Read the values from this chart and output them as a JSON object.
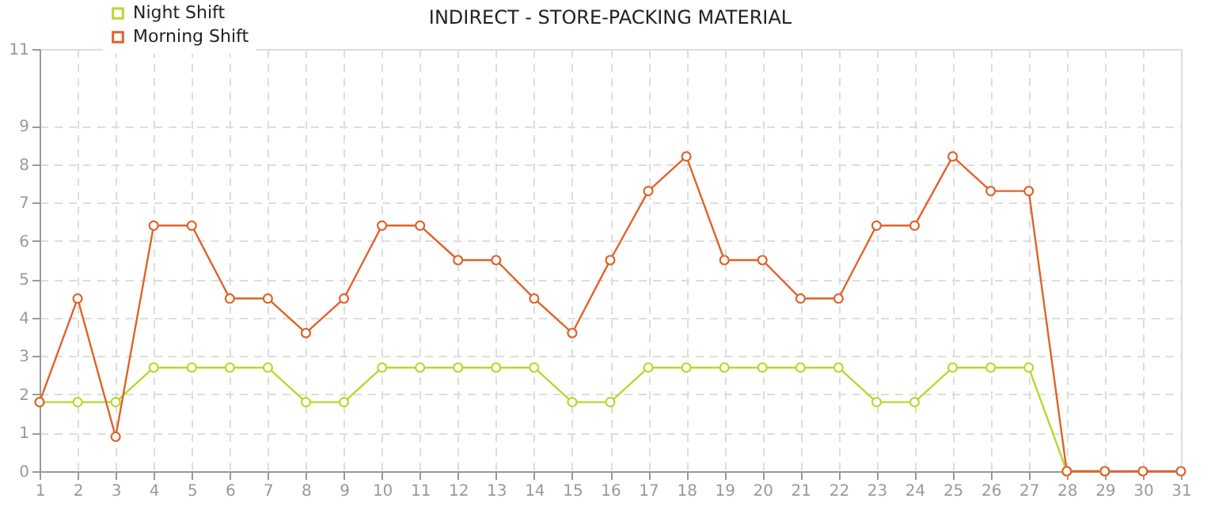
{
  "chart_data": {
    "type": "line",
    "title": "INDIRECT - STORE-PACKING  MATERIAL",
    "x": [
      1,
      2,
      3,
      4,
      5,
      6,
      7,
      8,
      9,
      10,
      11,
      12,
      13,
      14,
      15,
      16,
      17,
      18,
      19,
      20,
      21,
      22,
      23,
      24,
      25,
      26,
      27,
      28,
      29,
      30,
      31
    ],
    "xlim": [
      1,
      31
    ],
    "xticks": [
      1,
      2,
      3,
      4,
      5,
      6,
      7,
      8,
      9,
      10,
      11,
      12,
      13,
      14,
      15,
      16,
      17,
      18,
      19,
      20,
      21,
      22,
      23,
      24,
      25,
      26,
      27,
      28,
      29,
      30,
      31
    ],
    "ylim": [
      0,
      11
    ],
    "yticks": [
      0,
      1,
      2,
      3,
      4,
      5,
      6,
      7,
      8,
      9,
      11
    ],
    "series": [
      {
        "name": "Night Shift",
        "color": "#bcd62c",
        "values": [
          1.8,
          1.8,
          1.8,
          2.7,
          2.7,
          2.7,
          2.7,
          1.8,
          1.8,
          2.7,
          2.7,
          2.7,
          2.7,
          2.7,
          1.8,
          1.8,
          2.7,
          2.7,
          2.7,
          2.7,
          2.7,
          2.7,
          1.8,
          1.8,
          2.7,
          2.7,
          2.7,
          0,
          0,
          null,
          null
        ]
      },
      {
        "name": "Morning Shift",
        "color": "#e0622a",
        "values": [
          1.8,
          4.5,
          0.9,
          6.4,
          6.4,
          4.5,
          4.5,
          3.6,
          4.5,
          6.4,
          6.4,
          5.5,
          5.5,
          4.5,
          3.6,
          5.5,
          7.3,
          8.2,
          5.5,
          5.5,
          4.5,
          4.5,
          6.4,
          6.4,
          8.2,
          7.3,
          7.3,
          0,
          0,
          0,
          0
        ]
      }
    ],
    "grid": true,
    "legend": "top left",
    "marker": "circle",
    "line_style": "solid"
  }
}
